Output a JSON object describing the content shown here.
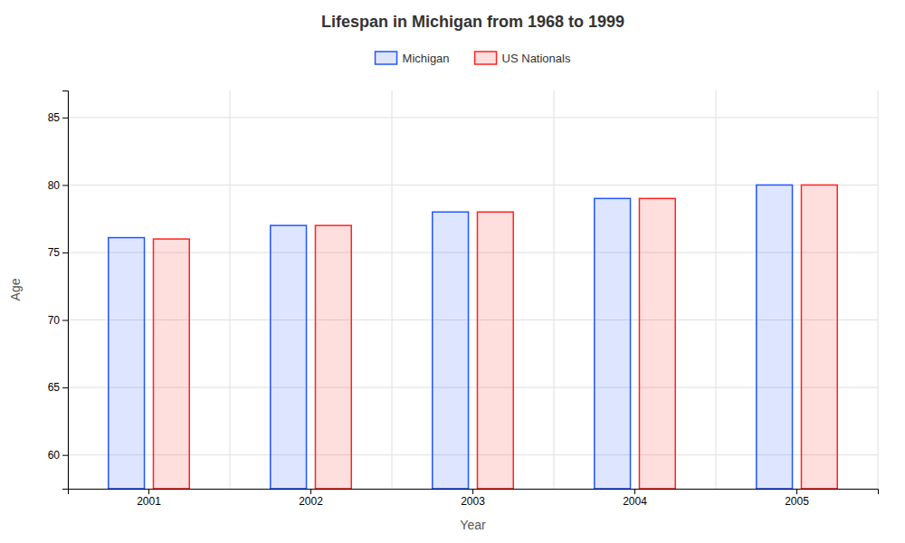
{
  "chart_data": {
    "type": "bar",
    "title": "Lifespan in Michigan from 1968 to 1999",
    "x_label": "Year",
    "y_label": "Age",
    "categories": [
      "2001",
      "2002",
      "2003",
      "2004",
      "2005"
    ],
    "series": [
      {
        "name": "Michigan",
        "color": "#2255ff",
        "values": [
          76.1,
          77.0,
          78.0,
          79.0,
          80.0
        ]
      },
      {
        "name": "US Nationals",
        "color": "#ff2222",
        "values": [
          76.0,
          77.0,
          78.0,
          79.0,
          80.0
        ]
      }
    ],
    "ylim": [
      57.5,
      87
    ],
    "yticks": [
      60,
      65,
      70,
      75,
      80,
      85
    ],
    "grid": true,
    "legend": "upper center"
  }
}
